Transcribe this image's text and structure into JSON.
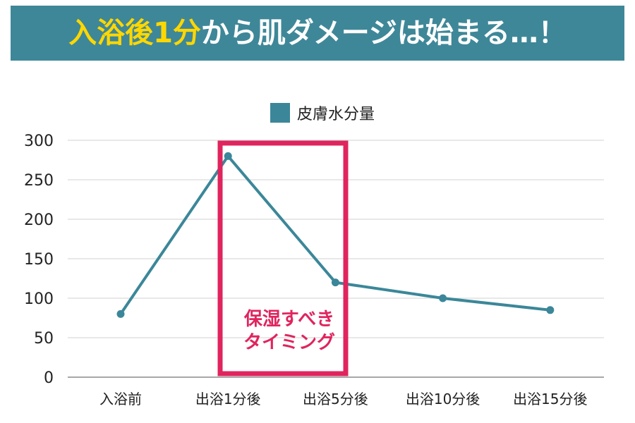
{
  "banner": {
    "highlight": "入浴後1分",
    "rest": "から肌ダメージは始まる…！"
  },
  "chart_data": {
    "type": "line",
    "title": "",
    "xlabel": "",
    "ylabel": "",
    "categories": [
      "入浴前",
      "出浴1分後",
      "出浴5分後",
      "出浴10分後",
      "出浴15分後"
    ],
    "series": [
      {
        "name": "皮膚水分量",
        "values": [
          80,
          280,
          120,
          100,
          85
        ],
        "color": "#3b8799"
      }
    ],
    "ylim": [
      0,
      300
    ],
    "yticks": [
      0,
      50,
      100,
      150,
      200,
      250,
      300
    ],
    "grid": true,
    "legend_position": "top-center",
    "annotation": {
      "lines": [
        "保湿すべき",
        "タイミング"
      ],
      "color": "#e0245e",
      "span_categories": [
        "出浴1分後",
        "出浴5分後"
      ]
    }
  }
}
